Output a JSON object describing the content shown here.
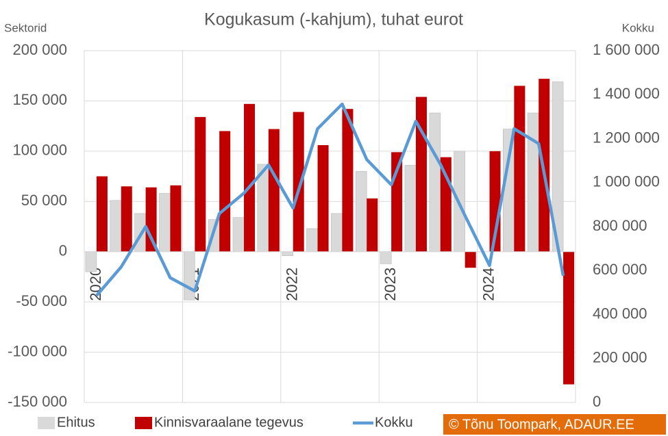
{
  "chart_data": {
    "type": "bar_line",
    "title": "Kogukasum (-kahjum), tuhat eurot",
    "y_label": "Sektorid",
    "y2_label": "Kokku",
    "categories": [
      "2020",
      null,
      null,
      null,
      "2021",
      null,
      null,
      null,
      "2022",
      null,
      null,
      null,
      "2023",
      null,
      null,
      null,
      "2024",
      null,
      null,
      null
    ],
    "series": [
      {
        "name": "Ehitus",
        "type": "bar",
        "color": "#d9d9d9",
        "values": [
          -20000,
          51000,
          38000,
          58000,
          -48000,
          32000,
          34000,
          87000,
          -4000,
          23000,
          38000,
          80000,
          -12000,
          86000,
          138000,
          100000,
          0,
          122000,
          138000,
          169000
        ]
      },
      {
        "name": "Kinnisvaraalane tegevus",
        "type": "bar",
        "color": "#c00000",
        "values": [
          75000,
          65000,
          64000,
          66000,
          134000,
          120000,
          147000,
          122000,
          139000,
          106000,
          142000,
          53000,
          99000,
          154000,
          94000,
          -16000,
          100000,
          165000,
          172000,
          -132000
        ]
      },
      {
        "name": "Kokku",
        "type": "line",
        "axis": "y2",
        "color": "#5b9bd5",
        "values": [
          486000,
          616000,
          800000,
          567000,
          507000,
          859000,
          952000,
          1080000,
          884000,
          1245000,
          1357000,
          1105000,
          990000,
          1279000,
          1083000,
          850000,
          623000,
          1245000,
          1177000,
          576000
        ]
      }
    ],
    "ylim": [
      -150000,
      200000
    ],
    "yticks": [
      {
        "value": -150000,
        "label": "-150 000"
      },
      {
        "value": -100000,
        "label": "-100 000"
      },
      {
        "value": -50000,
        "label": "-50 000"
      },
      0,
      {
        "value": 50000,
        "label": "50 000"
      },
      {
        "value": 100000,
        "label": "100 000"
      },
      {
        "value": 150000,
        "label": "150 000"
      },
      {
        "value": 200000,
        "label": "200 000"
      }
    ],
    "y2lim": [
      0,
      1600000
    ],
    "y2ticks": [
      0,
      {
        "value": 200000,
        "label": "200 000"
      },
      {
        "value": 400000,
        "label": "400 000"
      },
      {
        "value": 600000,
        "label": "600 000"
      },
      {
        "value": 800000,
        "label": "800 000"
      },
      {
        "value": 1000000,
        "label": "1 000 000"
      },
      {
        "value": 1200000,
        "label": "1 200 000"
      },
      {
        "value": 1400000,
        "label": "1 400 000"
      },
      {
        "value": 1600000,
        "label": "1 600 000"
      }
    ],
    "grid": true,
    "legend": "bottom",
    "copyright": "© Tõnu Toompark, ADAUR.EE"
  }
}
